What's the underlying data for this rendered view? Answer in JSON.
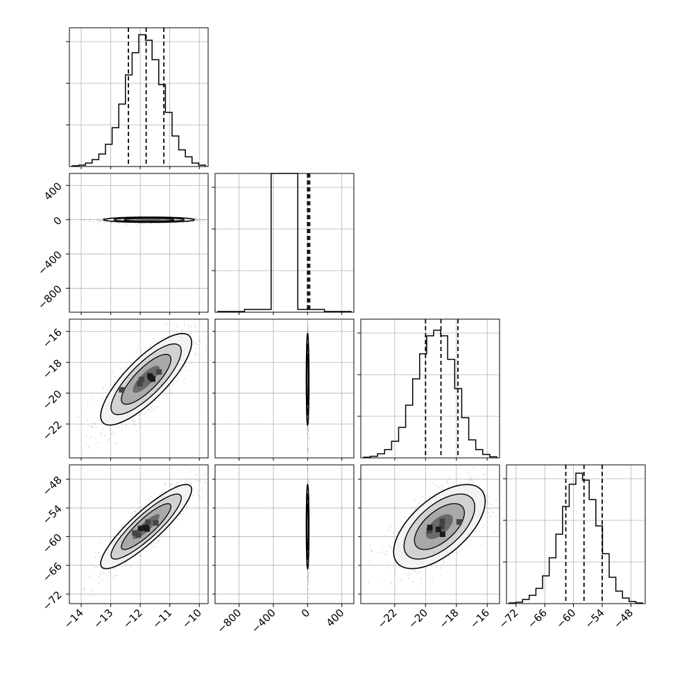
{
  "chart_data": {
    "type": "corner",
    "grid": true,
    "parameters": [
      {
        "range": [
          -14.4,
          -9.7
        ],
        "ticks": [
          -14,
          -13,
          -12,
          -11,
          -10
        ],
        "tick_labels": [
          "−14",
          "−13",
          "−12",
          "−11",
          "−10"
        ],
        "quantiles": [
          -12.4,
          -11.8,
          -11.2
        ],
        "hist": [
          0.005,
          0.01,
          0.025,
          0.05,
          0.09,
          0.16,
          0.28,
          0.45,
          0.66,
          0.82,
          0.95,
          0.91,
          0.77,
          0.59,
          0.39,
          0.22,
          0.12,
          0.07,
          0.025,
          0.01
        ]
      },
      {
        "range": [
          -1080,
          540
        ],
        "ticks": [
          -800,
          -400,
          0,
          400
        ],
        "tick_labels": [
          "−800",
          "−400",
          "0",
          "400"
        ],
        "quantiles": [
          0,
          8,
          25
        ],
        "hist": [
          0.005,
          0.02,
          1.0,
          0.02,
          0.005
        ]
      },
      {
        "range": [
          -24.2,
          -15.2
        ],
        "ticks": [
          -22,
          -20,
          -18,
          -16
        ],
        "tick_labels": [
          "−22",
          "−20",
          "−18",
          "−16"
        ],
        "quantiles": [
          -20.0,
          -19.0,
          -17.9
        ],
        "hist": [
          0.005,
          0.012,
          0.03,
          0.06,
          0.12,
          0.22,
          0.38,
          0.57,
          0.75,
          0.88,
          0.92,
          0.88,
          0.71,
          0.5,
          0.29,
          0.13,
          0.06,
          0.025,
          0.008
        ]
      },
      {
        "range": [
          -74,
          -45
        ],
        "ticks": [
          -72,
          -66,
          -60,
          -54,
          -48
        ],
        "tick_labels": [
          "−72",
          "−66",
          "−60",
          "−54",
          "−48"
        ],
        "quantiles": [
          -61.6,
          -57.8,
          -54.0
        ],
        "hist": [
          0.005,
          0.01,
          0.03,
          0.06,
          0.11,
          0.2,
          0.33,
          0.5,
          0.7,
          0.86,
          0.94,
          0.89,
          0.75,
          0.56,
          0.36,
          0.19,
          0.09,
          0.04,
          0.015,
          0.005
        ]
      }
    ],
    "row_axes": [
      null,
      {
        "range": [
          -1080,
          540
        ],
        "ticks": [
          -800,
          -400,
          0,
          400
        ],
        "tick_labels": [
          "−800",
          "−400",
          "0",
          "400"
        ]
      },
      {
        "range": [
          -24.2,
          -15.2
        ],
        "ticks": [
          -22,
          -20,
          -18,
          -16
        ],
        "tick_labels": [
          "−22",
          "−20",
          "−18",
          "−16"
        ]
      },
      {
        "range": [
          -74,
          -45
        ],
        "ticks": [
          -72,
          -66,
          -60,
          -54,
          -48
        ],
        "tick_labels": [
          "−72",
          "−66",
          "−60",
          "−54",
          "−48"
        ]
      }
    ],
    "pair_plots": [
      {
        "row": 1,
        "col": 0,
        "center": [
          -11.7,
          0
        ],
        "sd": [
          0.7,
          14
        ],
        "corr": 0.0
      },
      {
        "row": 2,
        "col": 0,
        "center": [
          -11.8,
          -19.1
        ],
        "sd": [
          0.7,
          1.35
        ],
        "corr": 0.8
      },
      {
        "row": 2,
        "col": 1,
        "center": [
          0,
          -19.1
        ],
        "sd": [
          7,
          1.35
        ],
        "corr": 0.0
      },
      {
        "row": 3,
        "col": 0,
        "center": [
          -11.8,
          -57.9
        ],
        "sd": [
          0.7,
          4.0
        ],
        "corr": 0.88
      },
      {
        "row": 3,
        "col": 1,
        "center": [
          0,
          -57.9
        ],
        "sd": [
          7,
          4.0
        ],
        "corr": 0.0
      },
      {
        "row": 3,
        "col": 2,
        "center": [
          -19.1,
          -57.9
        ],
        "sd": [
          1.35,
          4.0
        ],
        "corr": 0.6
      }
    ]
  }
}
